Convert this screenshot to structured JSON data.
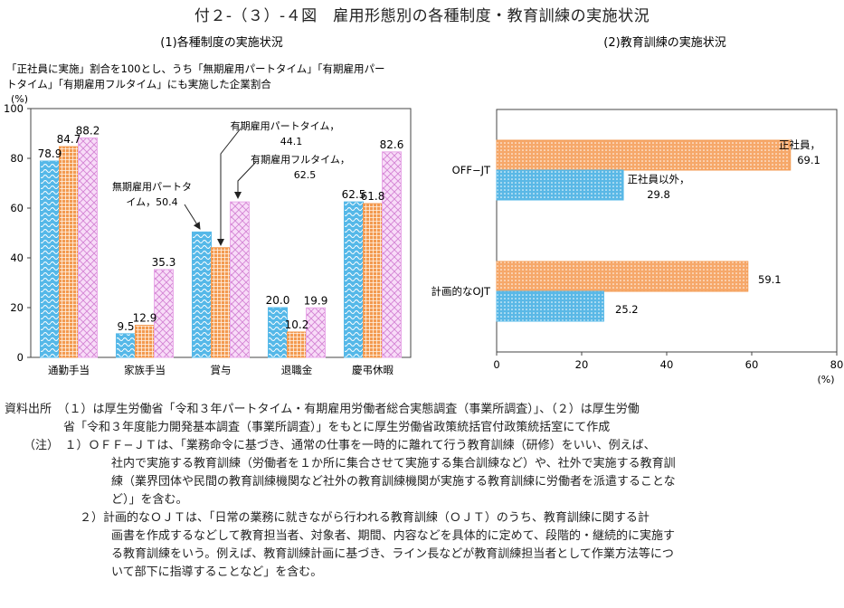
{
  "title": "付２-（３）-４図　雇用形態別の各種制度・教育訓練の実施状況",
  "chart_data": [
    {
      "type": "bar",
      "title": "(1)各種制度の実施状況",
      "subtitle_lines": [
        "「正社員に実施」割合を100とし、うち「無期雇用パートタイム」「有期雇用パー",
        "トタイム」「有期雇用フルタイム」にも実施した企業割合"
      ],
      "ylabel": "(%)",
      "ylim": [
        0,
        100
      ],
      "yticks": [
        0,
        20,
        40,
        60,
        80,
        100
      ],
      "categories": [
        "通勤手当",
        "家族手当",
        "賞与",
        "退職金",
        "慶弔休暇"
      ],
      "series": [
        {
          "name": "無期雇用パートタイム",
          "values": [
            78.9,
            9.5,
            50.4,
            20.0,
            62.5
          ],
          "color": "#55b8e8",
          "pattern": "wave"
        },
        {
          "name": "有期雇用パートタイム",
          "values": [
            84.7,
            12.9,
            44.1,
            10.2,
            61.8
          ],
          "color": "#f39a50",
          "pattern": "grid"
        },
        {
          "name": "有期雇用フルタイム",
          "values": [
            88.2,
            35.3,
            62.5,
            19.9,
            82.6
          ],
          "color": "#e8a8e8",
          "pattern": "diamond"
        }
      ],
      "value_labels": [
        [
          "78.9",
          "84.7",
          "88.2"
        ],
        [
          "9.5",
          "12.9",
          "35.3"
        ],
        [
          "",
          "",
          ""
        ],
        [
          "20.0",
          "10.2",
          "19.9"
        ],
        [
          "62.5",
          "61.8",
          "82.6"
        ]
      ],
      "annotations": [
        {
          "lines": [
            "無期雇用パートタ",
            "イム，50.4"
          ]
        },
        {
          "lines": [
            "有期雇用パートタイム，",
            "44.1"
          ]
        },
        {
          "lines": [
            "有期雇用フルタイム，",
            "62.5"
          ]
        }
      ]
    },
    {
      "type": "bar",
      "orientation": "horizontal",
      "title": "(2)教育訓練の実施状況",
      "xlabel": "(%)",
      "xlim": [
        0,
        80
      ],
      "xticks": [
        0,
        20,
        40,
        60,
        80
      ],
      "categories": [
        "OFF−JT",
        "計画的なOJT"
      ],
      "series": [
        {
          "name": "正社員",
          "values": [
            69.1,
            59.1
          ],
          "color": "#f39a50",
          "pattern": "dots"
        },
        {
          "name": "正社員以外",
          "values": [
            29.8,
            25.2
          ],
          "color": "#55b8e8",
          "pattern": "dots"
        }
      ],
      "value_labels": [
        [
          "正社員，",
          "69.1"
        ],
        [
          "正社員以外，",
          "29.8"
        ],
        [
          "59.1"
        ],
        [
          "25.2"
        ]
      ]
    }
  ],
  "notes": [
    "資料出所　（１）は厚生労働省「令和３年パートタイム・有期雇用労働者総合実態調査（事業所調査）」、（２）は厚生労働",
    "省「令和３年度能力開発基本調査（事業所調査）」をもとに厚生労働省政策統括官付政策統括室にて作成",
    "（注）　１）ＯＦＦ−ＪＴは、「業務命令に基づき、通常の仕事を一時的に離れて行う教育訓練（研修）をいい、例えば、",
    "社内で実施する教育訓練（労働者を１か所に集合させて実施する集合訓練など）や、社外で実施する教育訓",
    "練（業界団体や民間の教育訓練機関など社外の教育訓練機関が実施する教育訓練に労働者を派遣することな",
    "ど）」を含む。",
    "２）計画的なＯＪＴは、「日常の業務に就きながら行われる教育訓練（ＯＪＴ）のうち、教育訓練に関する計",
    "画書を作成するなどして教育担当者、対象者、期間、内容などを具体的に定めて、段階的・継続的に実施す",
    "る教育訓練をいう。例えば、教育訓練計画に基づき、ライン長などが教育訓練担当者として作業方法等につ",
    "いて部下に指導することなど」を含む。"
  ]
}
